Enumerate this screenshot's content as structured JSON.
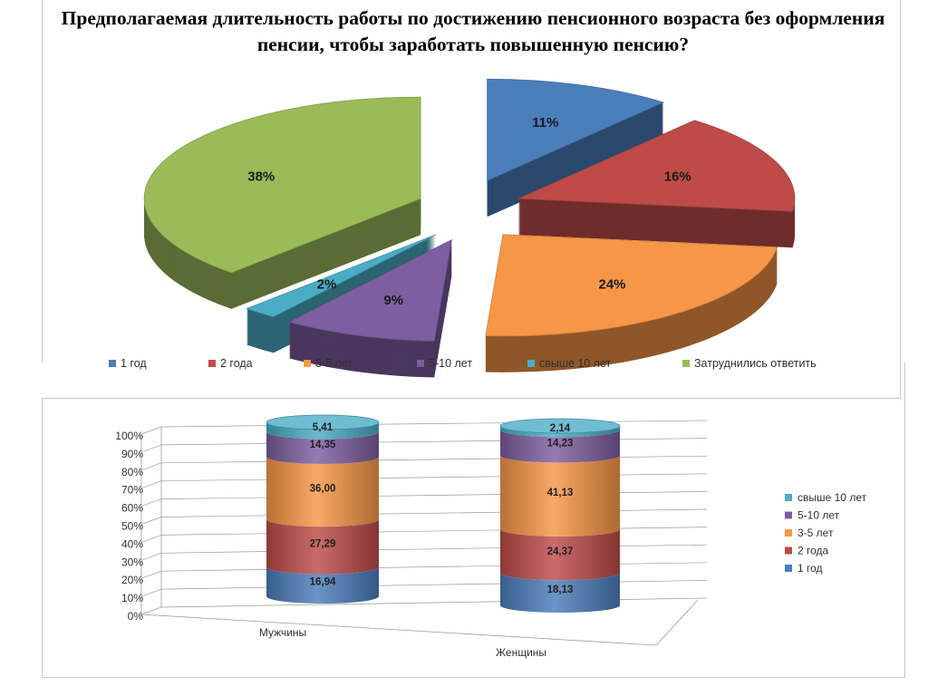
{
  "title": "Предполагаемая длительность работы по достижению пенсионного возраста без оформления пенсии, чтобы заработать повышенную пенсию?",
  "colors": {
    "1 год": "#4a7ebb",
    "2 года": "#be4b48",
    "3-5 лет": "#f79646",
    "5-10 лет": "#7d5ea0",
    "свыше 10 лет": "#4bacc6",
    "Затруднились ответить": "#9bbb59"
  },
  "chart_data": [
    {
      "type": "pie",
      "title": "Предполагаемая длительность работы по достижению пенсионного возраста без оформления пенсии, чтобы заработать повышенную пенсию?",
      "categories": [
        "1 год",
        "2 года",
        "3-5 лет",
        "5-10 лет",
        "свыше 10 лет",
        "Затруднились ответить"
      ],
      "values": [
        11,
        16,
        24,
        9,
        2,
        38
      ],
      "labels": [
        "11%",
        "16%",
        "24%",
        "9%",
        "2%",
        "38%"
      ],
      "exploded": true,
      "style": "3d",
      "legend": "bottom"
    },
    {
      "type": "bar",
      "style": "3d-cylinder-stacked-100",
      "categories": [
        "Мужчины",
        "Женщины"
      ],
      "series": [
        {
          "name": "1 год",
          "values": [
            16.94,
            18.13
          ],
          "labels": [
            "16,94",
            "18,13"
          ]
        },
        {
          "name": "2 года",
          "values": [
            27.29,
            24.37
          ],
          "labels": [
            "27,29",
            "24,37"
          ]
        },
        {
          "name": "3-5 лет",
          "values": [
            36.0,
            41.13
          ],
          "labels": [
            "36,00",
            "41,13"
          ]
        },
        {
          "name": "5-10 лет",
          "values": [
            14.35,
            14.23
          ],
          "labels": [
            "14,35",
            "14,23"
          ]
        },
        {
          "name": "свыше 10 лет",
          "values": [
            5.41,
            2.14
          ],
          "labels": [
            "5,41",
            "2,14"
          ]
        }
      ],
      "yticks": [
        "0%",
        "10%",
        "20%",
        "30%",
        "40%",
        "50%",
        "60%",
        "70%",
        "80%",
        "90%",
        "100%"
      ],
      "ylim": [
        0,
        100
      ],
      "grid": true,
      "legend": "right",
      "legend_order": [
        "свыше 10 лет",
        "5-10 лет",
        "3-5 лет",
        "2 года",
        "1 год"
      ]
    }
  ]
}
